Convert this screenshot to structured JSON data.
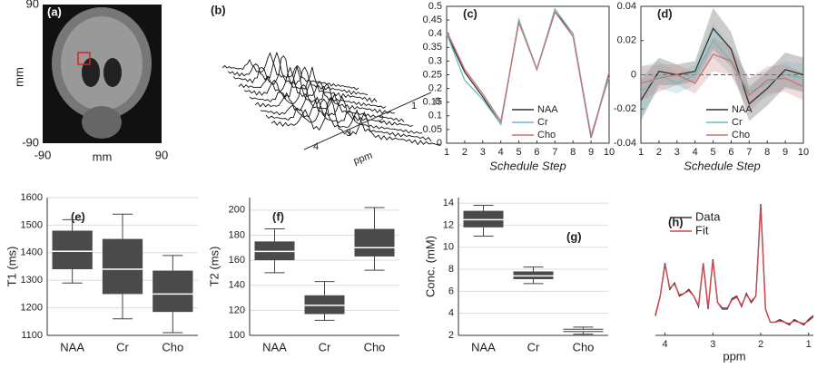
{
  "chart_data": [
    {
      "type": "image",
      "label": "(a)",
      "xlabel": "mm",
      "ylabel": "mm",
      "xlim": [
        -90,
        90
      ],
      "ylim": [
        -90,
        90
      ],
      "xticks": [
        -90,
        90
      ],
      "yticks": [
        -90,
        90
      ]
    },
    {
      "type": "waterfall",
      "label": "(b)",
      "xlabel": "ppm",
      "xticks": [
        4,
        3,
        2,
        1
      ],
      "zticks": [
        0
      ]
    },
    {
      "type": "line",
      "label": "(c)",
      "xlabel": "Schedule Step",
      "x": [
        1,
        2,
        3,
        4,
        5,
        6,
        7,
        8,
        9,
        10
      ],
      "xlim": [
        1,
        10
      ],
      "xticks": [
        1,
        2,
        3,
        4,
        5,
        6,
        7,
        8,
        9,
        10
      ],
      "ylim": [
        0,
        0.5
      ],
      "yticks": [
        0,
        0.05,
        0.1,
        0.15,
        0.2,
        0.25,
        0.3,
        0.35,
        0.4,
        0.45,
        0.5
      ],
      "series": [
        {
          "name": "NAA",
          "color": "#333333",
          "values": [
            0.4,
            0.26,
            0.17,
            0.07,
            0.45,
            0.27,
            0.48,
            0.4,
            0.02,
            0.25
          ]
        },
        {
          "name": "Cr",
          "color": "#6bbcc4",
          "values": [
            0.4,
            0.23,
            0.16,
            0.07,
            0.45,
            0.27,
            0.49,
            0.4,
            0.03,
            0.24
          ]
        },
        {
          "name": "Cho",
          "color": "#c87474",
          "values": [
            0.41,
            0.27,
            0.18,
            0.08,
            0.44,
            0.27,
            0.48,
            0.39,
            0.02,
            0.26
          ]
        }
      ]
    },
    {
      "type": "line",
      "label": "(d)",
      "xlabel": "Schedule Step",
      "x": [
        1,
        2,
        3,
        4,
        5,
        6,
        7,
        8,
        9,
        10
      ],
      "xlim": [
        1,
        10
      ],
      "xticks": [
        1,
        2,
        3,
        4,
        5,
        6,
        7,
        8,
        9,
        10
      ],
      "ylim": [
        -0.04,
        0.04
      ],
      "yticks": [
        -0.04,
        -0.02,
        0,
        0.02,
        0.04
      ],
      "zero_line": true,
      "series": [
        {
          "name": "NAA",
          "color": "#333333",
          "values": [
            -0.015,
            0.002,
            0,
            0.002,
            0.027,
            0.015,
            -0.017,
            -0.008,
            0.003,
            0
          ],
          "errors": [
            0.012,
            0.008,
            0.006,
            0.006,
            0.012,
            0.01,
            0.01,
            0.01,
            0.01,
            0.01
          ]
        },
        {
          "name": "Cr",
          "color": "#6bbcc4",
          "values": [
            -0.01,
            0,
            -0.005,
            0,
            0.02,
            0.008,
            -0.01,
            -0.005,
            0,
            -0.002
          ],
          "errors": [
            0.015,
            0.008,
            0.006,
            0.006,
            0.01,
            0.008,
            0.008,
            0.008,
            0.008,
            0.008
          ]
        },
        {
          "name": "Cho",
          "color": "#c87474",
          "values": [
            -0.005,
            -0.002,
            0,
            -0.005,
            0.012,
            0.008,
            -0.012,
            -0.003,
            -0.002,
            -0.007
          ],
          "errors": [
            0.01,
            0.008,
            0.006,
            0.006,
            0.01,
            0.008,
            0.01,
            0.008,
            0.008,
            0.008
          ]
        }
      ]
    },
    {
      "type": "box",
      "label": "(e)",
      "ylabel": "T1 (ms)",
      "categories": [
        "NAA",
        "Cr",
        "Cho"
      ],
      "ylim": [
        1100,
        1600
      ],
      "yticks": [
        1100,
        1200,
        1300,
        1400,
        1500,
        1600
      ],
      "grid": true,
      "color": "#4a4a4a",
      "boxes": [
        {
          "min": 1290,
          "q1": 1340,
          "median": 1405,
          "q3": 1480,
          "max": 1520
        },
        {
          "min": 1160,
          "q1": 1250,
          "median": 1340,
          "q3": 1450,
          "max": 1540
        },
        {
          "min": 1110,
          "q1": 1185,
          "median": 1250,
          "q3": 1335,
          "max": 1390
        }
      ]
    },
    {
      "type": "box",
      "label": "(f)",
      "ylabel": "T2 (ms)",
      "categories": [
        "NAA",
        "Cr",
        "Cho"
      ],
      "ylim": [
        100,
        210
      ],
      "yticks": [
        100,
        120,
        140,
        160,
        180,
        200
      ],
      "grid": true,
      "color": "#4a4a4a",
      "boxes": [
        {
          "min": 150,
          "q1": 160,
          "median": 167,
          "q3": 175,
          "max": 185
        },
        {
          "min": 112,
          "q1": 117,
          "median": 124,
          "q3": 132,
          "max": 143
        },
        {
          "min": 152,
          "q1": 163,
          "median": 170,
          "q3": 185,
          "max": 202
        }
      ]
    },
    {
      "type": "box",
      "label": "(g)",
      "ylabel": "Conc. (mM)",
      "categories": [
        "NAA",
        "Cr",
        "Cho"
      ],
      "ylim": [
        2,
        14.5
      ],
      "yticks": [
        2,
        4,
        6,
        8,
        10,
        12,
        14
      ],
      "grid": true,
      "color": "#4a4a4a",
      "boxes": [
        {
          "min": 11,
          "q1": 11.8,
          "median": 12.5,
          "q3": 13.3,
          "max": 13.8
        },
        {
          "min": 6.7,
          "q1": 7.1,
          "median": 7.4,
          "q3": 7.8,
          "max": 8.2
        },
        {
          "min": 2.1,
          "q1": 2.3,
          "median": 2.45,
          "q3": 2.6,
          "max": 2.75
        }
      ]
    },
    {
      "type": "line",
      "label": "(h)",
      "xlabel": "ppm",
      "xlim": [
        4.2,
        0.9
      ],
      "xticks": [
        4,
        3,
        2,
        1
      ],
      "ylim": [
        0,
        1.05
      ],
      "legend": "upper left",
      "x": [
        4.2,
        4.1,
        4.0,
        3.9,
        3.8,
        3.7,
        3.6,
        3.5,
        3.4,
        3.3,
        3.2,
        3.1,
        3.0,
        2.9,
        2.8,
        2.7,
        2.6,
        2.5,
        2.4,
        2.3,
        2.2,
        2.1,
        2.0,
        1.9,
        1.8,
        1.7,
        1.6,
        1.5,
        1.4,
        1.3,
        1.2,
        1.1,
        1.0,
        0.9
      ],
      "series": [
        {
          "name": "Data",
          "color": "#333333",
          "values": [
            0.15,
            0.3,
            0.55,
            0.35,
            0.4,
            0.3,
            0.32,
            0.35,
            0.3,
            0.22,
            0.55,
            0.2,
            0.58,
            0.25,
            0.2,
            0.2,
            0.28,
            0.3,
            0.22,
            0.32,
            0.25,
            0.3,
            1.0,
            0.2,
            0.1,
            0.1,
            0.12,
            0.1,
            0.08,
            0.12,
            0.1,
            0.08,
            0.12,
            0.15
          ]
        },
        {
          "name": "Fit",
          "color": "#d9434d",
          "values": [
            0.16,
            0.3,
            0.54,
            0.36,
            0.39,
            0.31,
            0.32,
            0.34,
            0.3,
            0.23,
            0.55,
            0.21,
            0.57,
            0.25,
            0.21,
            0.21,
            0.27,
            0.29,
            0.23,
            0.31,
            0.26,
            0.3,
            0.99,
            0.2,
            0.1,
            0.1,
            0.11,
            0.1,
            0.09,
            0.11,
            0.1,
            0.09,
            0.11,
            0.14
          ]
        }
      ]
    }
  ]
}
